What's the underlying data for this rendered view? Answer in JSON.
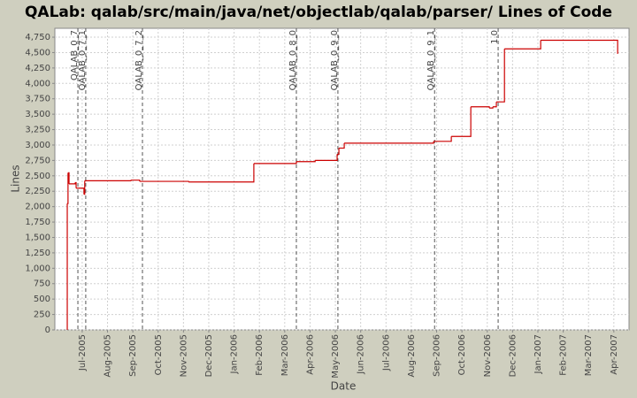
{
  "chart_data": {
    "type": "step",
    "title": "QALab: qalab/src/main/java/net/objectlab/qalab/parser/ Lines of Code",
    "x_label": "Date",
    "y_label": "Lines",
    "grid": true,
    "series": [
      {
        "name": "Lines of Code",
        "color": "#cc0000",
        "x": [
          5.41,
          5.41,
          5.44,
          5.48,
          5.72,
          5.76,
          6.07,
          6.1,
          7.92,
          8.27,
          10.2,
          12.78,
          14.46,
          15.2,
          16.07,
          16.14,
          16.35,
          19.88,
          20.58,
          21.35,
          22.08,
          22.22,
          22.36,
          22.68,
          24.11,
          27.15
        ],
        "values": [
          0,
          2050,
          2550,
          2370,
          2390,
          2300,
          2200,
          2420,
          2430,
          2410,
          2400,
          2700,
          2730,
          2750,
          2850,
          2950,
          3030,
          3060,
          3140,
          3620,
          3600,
          3620,
          3700,
          4560,
          4700,
          4480
        ]
      }
    ],
    "markers": [
      {
        "label": "QALAB_0_7",
        "x": 5.83
      },
      {
        "label": "QALAB_0_7_1",
        "x": 6.14
      },
      {
        "label": "QALAB_0_7_2",
        "x": 8.38
      },
      {
        "label": "QALAB_0_8_0",
        "x": 14.46
      },
      {
        "label": "QALAB_0_9_0",
        "x": 16.1
      },
      {
        "label": "QALAB_0_9_1",
        "x": 19.92
      },
      {
        "label": "1.0",
        "x": 22.43
      }
    ],
    "xlim": [
      4.92,
      27.6
    ],
    "xticks": [
      {
        "value": 6,
        "label": "Jul-2005"
      },
      {
        "value": 7,
        "label": "Aug-2005"
      },
      {
        "value": 8,
        "label": "Sep-2005"
      },
      {
        "value": 9,
        "label": "Oct-2005"
      },
      {
        "value": 10,
        "label": "Nov-2005"
      },
      {
        "value": 11,
        "label": "Dec-2005"
      },
      {
        "value": 12,
        "label": "Jan-2006"
      },
      {
        "value": 13,
        "label": "Feb-2006"
      },
      {
        "value": 14,
        "label": "Mar-2006"
      },
      {
        "value": 15,
        "label": "Apr-2006"
      },
      {
        "value": 16,
        "label": "May-2006"
      },
      {
        "value": 17,
        "label": "Jun-2006"
      },
      {
        "value": 18,
        "label": "Jul-2006"
      },
      {
        "value": 19,
        "label": "Aug-2006"
      },
      {
        "value": 20,
        "label": "Sep-2006"
      },
      {
        "value": 21,
        "label": "Oct-2006"
      },
      {
        "value": 22,
        "label": "Nov-2006"
      },
      {
        "value": 23,
        "label": "Dec-2006"
      },
      {
        "value": 24,
        "label": "Jan-2007"
      },
      {
        "value": 25,
        "label": "Feb-2007"
      },
      {
        "value": 26,
        "label": "Mar-2007"
      },
      {
        "value": 27,
        "label": "Apr-2007"
      }
    ],
    "ylim": [
      0,
      4894
    ],
    "yticks": [
      0,
      250,
      500,
      750,
      {
        "value": 1000,
        "label": "1,000"
      },
      {
        "value": 1250,
        "label": "1,250"
      },
      {
        "value": 1500,
        "label": "1,500"
      },
      {
        "value": 1750,
        "label": "1,750"
      },
      {
        "value": 2000,
        "label": "2,000"
      },
      {
        "value": 2250,
        "label": "2,250"
      },
      {
        "value": 2500,
        "label": "2,500"
      },
      {
        "value": 2750,
        "label": "2,750"
      },
      {
        "value": 3000,
        "label": "3,000"
      },
      {
        "value": 3250,
        "label": "3,250"
      },
      {
        "value": 3500,
        "label": "3,500"
      },
      {
        "value": 3750,
        "label": "3,750"
      },
      {
        "value": 4000,
        "label": "4,000"
      },
      {
        "value": 4250,
        "label": "4,250"
      },
      {
        "value": 4500,
        "label": "4,500"
      },
      {
        "value": 4750,
        "label": "4,750"
      }
    ]
  }
}
